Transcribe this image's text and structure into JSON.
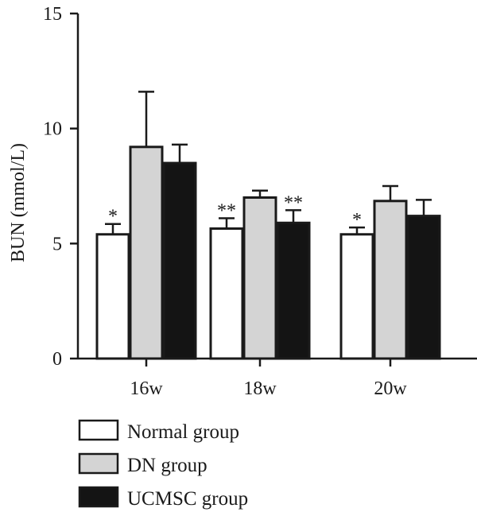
{
  "chart_data": {
    "type": "bar",
    "ylabel": "BUN (mmol/L)",
    "xlabel": "",
    "ylim": [
      0,
      15
    ],
    "yticks": [
      0,
      5,
      10,
      15
    ],
    "categories": [
      "16w",
      "18w",
      "20w"
    ],
    "series": [
      {
        "name": "Normal group",
        "values": [
          5.4,
          5.65,
          5.4
        ],
        "errors": [
          0.45,
          0.45,
          0.3
        ],
        "markers": [
          "*",
          "**",
          "*"
        ],
        "color": "#ffffff"
      },
      {
        "name": "DN group",
        "values": [
          9.2,
          7.0,
          6.85
        ],
        "errors": [
          2.4,
          0.3,
          0.65
        ],
        "markers": [
          "",
          "",
          ""
        ],
        "color": "#d4d4d4"
      },
      {
        "name": "UCMSC group",
        "values": [
          8.5,
          5.9,
          6.2
        ],
        "errors": [
          0.8,
          0.55,
          0.7
        ],
        "markers": [
          "",
          "**",
          ""
        ],
        "color": "#141414"
      }
    ],
    "legend_position": "bottom-left",
    "grid": false
  }
}
